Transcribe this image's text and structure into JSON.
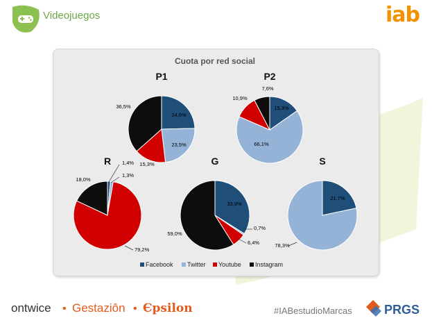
{
  "header": {
    "section_title": "Videojuegos",
    "brand": "iab"
  },
  "chart_data": {
    "type": "pie",
    "title": "Cuota por red social",
    "legend": [
      "Facebook",
      "Twitter",
      "Youtube",
      "Instagram"
    ],
    "legend_position": "bottom",
    "colors": {
      "Facebook": "#1f4e79",
      "Twitter": "#95b3d7",
      "Youtube": "#d00000",
      "Instagram": "#0d0d0d"
    },
    "pies": [
      {
        "name": "P1",
        "slices": [
          {
            "series": "Facebook",
            "value": 24.6,
            "label": "24,6%"
          },
          {
            "series": "Twitter",
            "value": 23.5,
            "label": "23,5%"
          },
          {
            "series": "Youtube",
            "value": 15.3,
            "label": "15,3%"
          },
          {
            "series": "Instagram",
            "value": 36.5,
            "label": "36,5%"
          }
        ]
      },
      {
        "name": "P2",
        "slices": [
          {
            "series": "Facebook",
            "value": 15.3,
            "label": "15,3%"
          },
          {
            "series": "Twitter",
            "value": 66.1,
            "label": "66,1%"
          },
          {
            "series": "Youtube",
            "value": 10.9,
            "label": "10,9%"
          },
          {
            "series": "Instagram",
            "value": 7.6,
            "label": "7,6%"
          }
        ]
      },
      {
        "name": "R",
        "slices": [
          {
            "series": "Facebook",
            "value": 1.4,
            "label": "1,4%"
          },
          {
            "series": "Twitter",
            "value": 1.3,
            "label": "1,3%"
          },
          {
            "series": "Youtube",
            "value": 79.2,
            "label": "79,2%"
          },
          {
            "series": "Instagram",
            "value": 18.0,
            "label": "18,0%"
          }
        ]
      },
      {
        "name": "G",
        "slices": [
          {
            "series": "Facebook",
            "value": 33.9,
            "label": "33,9%"
          },
          {
            "series": "Twitter",
            "value": 0.7,
            "label": "0,7%"
          },
          {
            "series": "Youtube",
            "value": 6.4,
            "label": "6,4%"
          },
          {
            "series": "Instagram",
            "value": 59.0,
            "label": "59,0%"
          }
        ]
      },
      {
        "name": "S",
        "slices": [
          {
            "series": "Facebook",
            "value": 21.7,
            "label": "21,7%"
          },
          {
            "series": "Twitter",
            "value": 78.3,
            "label": "78,3%"
          },
          {
            "series": "Youtube",
            "value": 0,
            "label": ""
          },
          {
            "series": "Instagram",
            "value": 0,
            "label": ""
          }
        ]
      }
    ]
  },
  "footer": {
    "sponsors": [
      "ontwice",
      "Gestaziôn",
      "Єpsilon"
    ],
    "separator": "•",
    "hashtag": "#IABestudioMarcas",
    "partner_logo": "PRGS"
  }
}
